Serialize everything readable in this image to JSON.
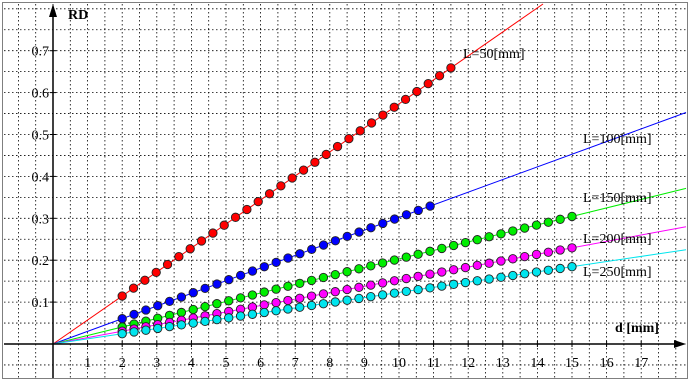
{
  "chart_data": {
    "type": "scatter",
    "xlabel": "d [mm]",
    "ylabel": "RD",
    "xlim": [
      -1,
      18.2
    ],
    "ylim": [
      0,
      0.82
    ],
    "x_ticks": [
      1,
      2,
      3,
      4,
      5,
      6,
      7,
      8,
      9,
      10,
      11,
      12,
      13,
      14,
      15,
      16,
      17
    ],
    "y_ticks": [
      0.1,
      0.2,
      0.3,
      0.4,
      0.5,
      0.6,
      0.7
    ],
    "grid": true,
    "series": [
      {
        "name": "L=50[mm]",
        "color": "#ff0000",
        "slope": 0.0573,
        "x_start": 2.0,
        "x_end": 11.5,
        "point_count": 30
      },
      {
        "name": "L=100[mm]",
        "color": "#0000ff",
        "slope": 0.0302,
        "x_start": 2.0,
        "x_end": 10.9,
        "point_count": 27
      },
      {
        "name": "L=150[mm]",
        "color": "#00ee00",
        "slope": 0.0203,
        "x_start": 2.0,
        "x_end": 15.0,
        "point_count": 39
      },
      {
        "name": "L=200[mm]",
        "color": "#ff00ff",
        "slope": 0.0153,
        "x_start": 2.0,
        "x_end": 15.0,
        "point_count": 39
      },
      {
        "name": "L=250[mm]",
        "color": "#00e5ee",
        "slope": 0.0123,
        "x_start": 2.0,
        "x_end": 15.0,
        "point_count": 39
      }
    ]
  }
}
